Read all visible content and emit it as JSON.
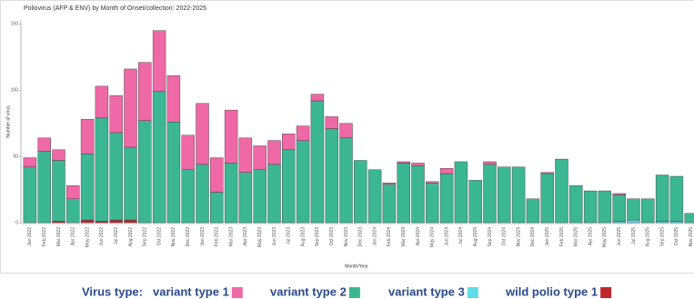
{
  "chart_data": {
    "type": "stacked_bar",
    "title": "Poliovirus (AFP & ENV)  by Month of Onset/collection: 2022-2025",
    "x_label": "Month/Year",
    "y_label": "Number of virus",
    "legend_title": "Virus type:",
    "categories": [
      "Jan 2022",
      "Feb 2022",
      "Mar 2022",
      "Apr 2022",
      "May 2022",
      "Jun 2022",
      "Jul 2022",
      "Aug 2022",
      "Sep 2022",
      "Oct 2022",
      "Nov 2022",
      "Dec 2022",
      "Jan 2023",
      "Feb 2023",
      "Mar 2023",
      "Apr 2023",
      "May 2023",
      "Jun 2023",
      "Jul 2023",
      "Aug 2023",
      "Sep 2023",
      "Oct 2023",
      "Nov 2023",
      "Dec 2023",
      "Jan 2024",
      "Feb 2024",
      "Mar 2024",
      "Apr 2024",
      "May 2024",
      "Jun 2024",
      "Jul 2024",
      "Aug 2024",
      "Sep 2024",
      "Oct 2024",
      "Nov 2024",
      "Dec 2024",
      "Jan 2025",
      "Feb 2025",
      "Mar 2025",
      "Apr 2025",
      "May 2025",
      "Jun 2025",
      "Jul 2025",
      "Aug 2025",
      "Sep 2025",
      "Oct 2025",
      "Nov 2025"
    ],
    "series": [
      {
        "name": "variant type 1",
        "color": "#ef69a6",
        "values": [
          7,
          10,
          8,
          10,
          26,
          24,
          28,
          59,
          44,
          46,
          35,
          26,
          46,
          26,
          40,
          26,
          18,
          18,
          12,
          11,
          5,
          9,
          11,
          0,
          0,
          1,
          1,
          2,
          1,
          4,
          0,
          0,
          2,
          0,
          0,
          0,
          1,
          0,
          0,
          0,
          0,
          1,
          0,
          0,
          0,
          0,
          0
        ]
      },
      {
        "name": "variant type 2",
        "color": "#3bb792",
        "values": [
          42,
          54,
          46,
          18,
          50,
          78,
          66,
          55,
          77,
          99,
          76,
          40,
          44,
          23,
          45,
          38,
          40,
          44,
          55,
          62,
          92,
          71,
          64,
          47,
          40,
          29,
          45,
          43,
          30,
          37,
          46,
          32,
          44,
          42,
          42,
          18,
          37,
          48,
          28,
          24,
          24,
          20,
          16,
          18,
          35,
          34,
          7
        ]
      },
      {
        "name": "variant type 3",
        "color": "#5fdde6",
        "values": [
          0,
          0,
          0,
          0,
          0,
          0,
          0,
          0,
          0,
          0,
          0,
          0,
          0,
          0,
          0,
          0,
          0,
          0,
          0,
          0,
          0,
          0,
          0,
          0,
          0,
          0,
          0,
          0,
          0,
          0,
          0,
          0,
          0,
          0,
          0,
          0,
          0,
          0,
          0,
          0,
          0,
          1,
          2,
          0,
          1,
          1,
          0
        ]
      },
      {
        "name": "wild polio type 1",
        "color": "#c0272d",
        "values": [
          0,
          0,
          1,
          0,
          2,
          1,
          2,
          2,
          0,
          0,
          0,
          0,
          0,
          0,
          0,
          0,
          0,
          0,
          0,
          0,
          0,
          0,
          0,
          0,
          0,
          0,
          0,
          0,
          0,
          0,
          0,
          0,
          0,
          0,
          0,
          0,
          0,
          0,
          0,
          0,
          0,
          0,
          0,
          0,
          0,
          0,
          0
        ]
      }
    ],
    "stack_order": [
      "wild polio type 1",
      "variant type 3",
      "variant type 2",
      "variant type 1"
    ],
    "ylim": [
      0,
      153
    ],
    "yticks": [
      0,
      50,
      100,
      150
    ],
    "grid": false
  }
}
